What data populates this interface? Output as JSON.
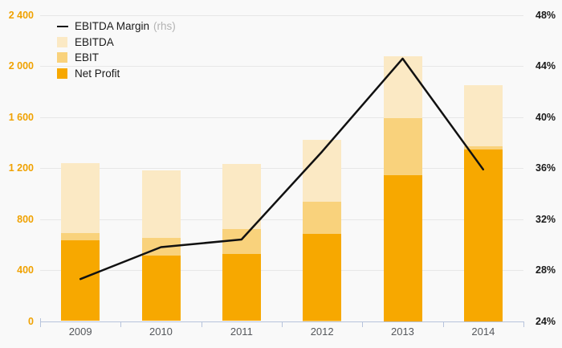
{
  "chart_data": {
    "type": "bar",
    "subtype": "overlay-bars-with-line",
    "categories": [
      "2009",
      "2010",
      "2011",
      "2012",
      "2013",
      "2014"
    ],
    "series": [
      {
        "name": "EBITDA Margin",
        "type": "line",
        "axis": "right",
        "unit": "%",
        "values": [
          27.3,
          29.8,
          30.4,
          37.3,
          44.6,
          35.9
        ],
        "color": "#111111"
      },
      {
        "name": "EBITDA",
        "type": "bar",
        "axis": "left",
        "values": [
          1240,
          1185,
          1235,
          1420,
          2080,
          1850
        ],
        "color": "#FBE9C4"
      },
      {
        "name": "EBIT",
        "type": "bar",
        "axis": "left",
        "values": [
          690,
          650,
          720,
          940,
          1595,
          1375
        ],
        "color": "#F9D27C"
      },
      {
        "name": "Net Profit",
        "type": "bar",
        "axis": "left",
        "values": [
          635,
          515,
          525,
          685,
          1145,
          1350
        ],
        "color": "#F7A800"
      }
    ],
    "left_axis": {
      "min": 0,
      "max": 2400,
      "step": 400,
      "tick_labels": [
        "0",
        "400",
        "800",
        "1 200",
        "1 600",
        "2 000",
        "2 400"
      ],
      "label_color": "#F0A202"
    },
    "right_axis": {
      "min": 24,
      "max": 48,
      "step": 4,
      "tick_labels": [
        "24%",
        "28%",
        "32%",
        "36%",
        "40%",
        "44%",
        "48%"
      ],
      "label_color": "#1a1a1a"
    },
    "legend": [
      {
        "label": "EBITDA Margin",
        "suffix": "(rhs)",
        "swatch": "line"
      },
      {
        "label": "EBITDA",
        "suffix": "",
        "swatch": "square"
      },
      {
        "label": "EBIT",
        "suffix": "",
        "swatch": "square"
      },
      {
        "label": "Net Profit",
        "suffix": "",
        "swatch": "square"
      }
    ],
    "grid": true,
    "legend_position": "top-left",
    "background": "#f9f9f9",
    "gridline_color": "#e7e7e7",
    "x_axis_color": "#b6c3dc",
    "year_label_color": "#55585c"
  }
}
